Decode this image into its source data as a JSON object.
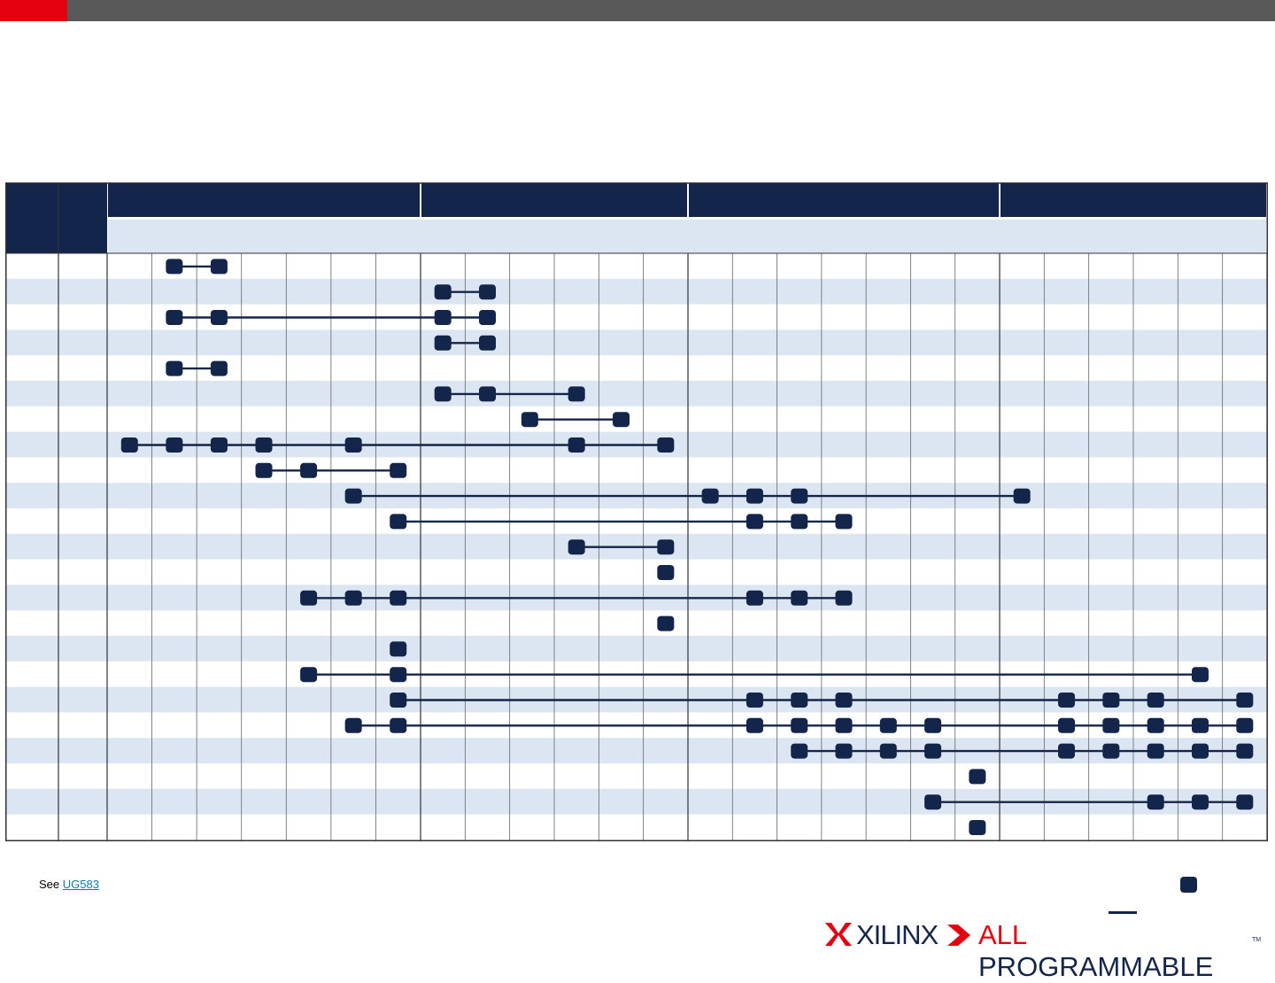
{
  "colors": {
    "header_fill": "#14254b",
    "subheader_fill": "#dce6f2",
    "row_stripe": "#dce6f2",
    "node": "#14254b",
    "link": "#0b7bb5",
    "brand_red": "#e3000f",
    "topbar": "#595959"
  },
  "footnote": {
    "prefix": "See ",
    "link_text": "UG583"
  },
  "logo": {
    "brand": "XILINX",
    "tagline_part1": "ALL ",
    "tagline_part2": "PROGRAMMABLE",
    "tm": "TM"
  },
  "matrix": {
    "group_column_counts": [
      7,
      6,
      7,
      6
    ],
    "rows": [
      {
        "nodes": [
          1,
          2
        ]
      },
      {
        "nodes": [
          7,
          8
        ]
      },
      {
        "nodes": [
          1,
          2,
          7,
          8
        ]
      },
      {
        "nodes": [
          7,
          8
        ]
      },
      {
        "nodes": [
          1,
          2
        ]
      },
      {
        "nodes": [
          7,
          8,
          10
        ]
      },
      {
        "nodes": [
          8.95,
          11
        ]
      },
      {
        "nodes": [
          0,
          1,
          2,
          3,
          5,
          10,
          12
        ]
      },
      {
        "nodes": [
          3,
          4,
          6
        ]
      },
      {
        "nodes": [
          5,
          13,
          14,
          15,
          20
        ]
      },
      {
        "nodes": [
          6,
          14,
          15,
          16
        ]
      },
      {
        "nodes": [
          10,
          12
        ]
      },
      {
        "nodes": [
          12
        ]
      },
      {
        "nodes": [
          4,
          5,
          6,
          14,
          15,
          16
        ]
      },
      {
        "nodes": [
          12
        ]
      },
      {
        "nodes": [
          6
        ]
      },
      {
        "nodes": [
          4,
          6,
          24
        ]
      },
      {
        "nodes": [
          6,
          14,
          15,
          16,
          21,
          22,
          23,
          25
        ]
      },
      {
        "nodes": [
          5,
          6,
          14,
          15,
          16,
          17,
          18,
          21,
          22,
          23,
          24,
          25
        ]
      },
      {
        "nodes": [
          15,
          16,
          17,
          18,
          21,
          22,
          23,
          24,
          25
        ]
      },
      {
        "nodes": [
          19
        ]
      },
      {
        "nodes": [
          18,
          23,
          24,
          25
        ]
      },
      {
        "nodes": [
          19
        ]
      }
    ]
  }
}
